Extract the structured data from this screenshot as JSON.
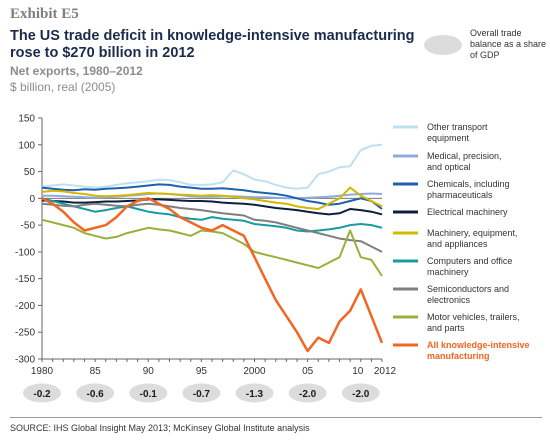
{
  "header": {
    "exhibit": "Exhibit E5",
    "title": "The US trade deficit in knowledge-intensive manufacturing rose to $270 billion in 2012",
    "subtitle": "Net exports, 1980–2012",
    "unit": "$ billion, real (2005)"
  },
  "gdp_note": "Overall trade balance as a share of GDP",
  "source": "SOURCE: IHS Global Insight May 2013; McKinsey Global Institute analysis",
  "chart_data": {
    "type": "line",
    "ylim": [
      -300,
      150
    ],
    "xlim": [
      1980,
      2012
    ],
    "yticks": [
      150,
      100,
      50,
      0,
      -50,
      -100,
      -150,
      -200,
      -250,
      -300
    ],
    "xticks": [
      {
        "value": 1980,
        "label": "1980"
      },
      {
        "value": 1985,
        "label": "85"
      },
      {
        "value": 1990,
        "label": "90"
      },
      {
        "value": 1995,
        "label": "95"
      },
      {
        "value": 2000,
        "label": "2000"
      },
      {
        "value": 2005,
        "label": "05"
      },
      {
        "value": 2010,
        "label": "10"
      },
      {
        "value": 2012,
        "label": "2012"
      }
    ],
    "gdp_share": [
      {
        "year": 1980,
        "value": "-0.2"
      },
      {
        "year": 1985,
        "value": "-0.6"
      },
      {
        "year": 1990,
        "value": "-0.1"
      },
      {
        "year": 1995,
        "value": "-0.7"
      },
      {
        "year": 2000,
        "value": "-1.3"
      },
      {
        "year": 2005,
        "value": "-2.0"
      },
      {
        "year": 2010,
        "value": "-2.0"
      }
    ],
    "x": [
      1980,
      1981,
      1982,
      1983,
      1984,
      1985,
      1986,
      1987,
      1988,
      1989,
      1990,
      1991,
      1992,
      1993,
      1994,
      1995,
      1996,
      1997,
      1998,
      1999,
      2000,
      2001,
      2002,
      2003,
      2004,
      2005,
      2006,
      2007,
      2008,
      2009,
      2010,
      2011,
      2012
    ],
    "series": [
      {
        "name": "Other transport equipment",
        "color": "#bfe0f2",
        "width": 2,
        "values": [
          22,
          24,
          26,
          24,
          22,
          20,
          22,
          25,
          28,
          30,
          32,
          35,
          34,
          30,
          25,
          25,
          26,
          30,
          52,
          45,
          35,
          32,
          25,
          20,
          18,
          20,
          45,
          50,
          58,
          60,
          90,
          98,
          100
        ]
      },
      {
        "name": "Medical, precision, and optical",
        "color": "#8faadc",
        "width": 2,
        "values": [
          5,
          5,
          4,
          3,
          2,
          1,
          2,
          3,
          5,
          6,
          8,
          9,
          8,
          6,
          4,
          3,
          3,
          4,
          4,
          3,
          2,
          2,
          1,
          0,
          0,
          1,
          2,
          3,
          5,
          7,
          8,
          9,
          8
        ]
      },
      {
        "name": "Chemicals, including pharmaceuticals",
        "color": "#1f5fad",
        "width": 2,
        "values": [
          20,
          18,
          16,
          15,
          17,
          16,
          18,
          19,
          20,
          22,
          24,
          26,
          25,
          22,
          20,
          18,
          18,
          19,
          17,
          15,
          12,
          10,
          8,
          5,
          0,
          -5,
          -8,
          -12,
          -10,
          -5,
          0,
          -5,
          -20
        ]
      },
      {
        "name": "Electrical machinery",
        "color": "#0d1f40",
        "width": 2,
        "values": [
          -4,
          -5,
          -6,
          -8,
          -8,
          -7,
          -6,
          -6,
          -5,
          -4,
          -2,
          -2,
          -3,
          -4,
          -5,
          -5,
          -6,
          -8,
          -9,
          -10,
          -12,
          -15,
          -18,
          -20,
          -22,
          -25,
          -28,
          -30,
          -28,
          -20,
          -22,
          -25,
          -30
        ]
      },
      {
        "name": "Machinery, equipment, and appliances",
        "color": "#d4b800",
        "width": 2,
        "values": [
          12,
          14,
          13,
          10,
          8,
          5,
          4,
          5,
          6,
          8,
          10,
          9,
          8,
          7,
          6,
          5,
          6,
          5,
          3,
          0,
          -2,
          -5,
          -8,
          -10,
          -15,
          -18,
          -20,
          -10,
          0,
          20,
          5,
          -5,
          -15
        ]
      },
      {
        "name": "Computers and office machinery",
        "color": "#1a9aa0",
        "width": 2,
        "values": [
          0,
          -5,
          -10,
          -15,
          -20,
          -25,
          -22,
          -18,
          -15,
          -20,
          -25,
          -28,
          -30,
          -35,
          -38,
          -40,
          -35,
          -38,
          -40,
          -42,
          -48,
          -50,
          -52,
          -55,
          -60,
          -62,
          -60,
          -58,
          -55,
          -50,
          -48,
          -50,
          -55
        ]
      },
      {
        "name": "Semiconductors and electronics",
        "color": "#7f7f7f",
        "width": 2,
        "values": [
          -10,
          -12,
          -14,
          -15,
          -12,
          -10,
          -12,
          -14,
          -15,
          -12,
          -10,
          -12,
          -15,
          -18,
          -20,
          -22,
          -25,
          -28,
          -30,
          -32,
          -40,
          -42,
          -45,
          -50,
          -55,
          -60,
          -65,
          -70,
          -75,
          -78,
          -80,
          -90,
          -100
        ]
      },
      {
        "name": "Motor vehicles, trailers, and parts",
        "color": "#99b03b",
        "width": 2,
        "values": [
          -40,
          -45,
          -50,
          -55,
          -65,
          -70,
          -75,
          -72,
          -65,
          -60,
          -55,
          -58,
          -60,
          -65,
          -70,
          -60,
          -62,
          -65,
          -75,
          -85,
          -100,
          -105,
          -110,
          -115,
          -120,
          -125,
          -130,
          -120,
          -110,
          -60,
          -110,
          -115,
          -145
        ]
      },
      {
        "name": "All knowledge-intensive manufacturing",
        "color": "#f26522",
        "width": 2.5,
        "highlight": true,
        "values": [
          0,
          -10,
          -25,
          -45,
          -60,
          -55,
          -50,
          -35,
          -15,
          -5,
          0,
          -10,
          -20,
          -35,
          -45,
          -55,
          -60,
          -50,
          -60,
          -70,
          -110,
          -150,
          -190,
          -220,
          -250,
          -285,
          -260,
          -270,
          -230,
          -210,
          -170,
          -220,
          -270
        ]
      }
    ]
  }
}
